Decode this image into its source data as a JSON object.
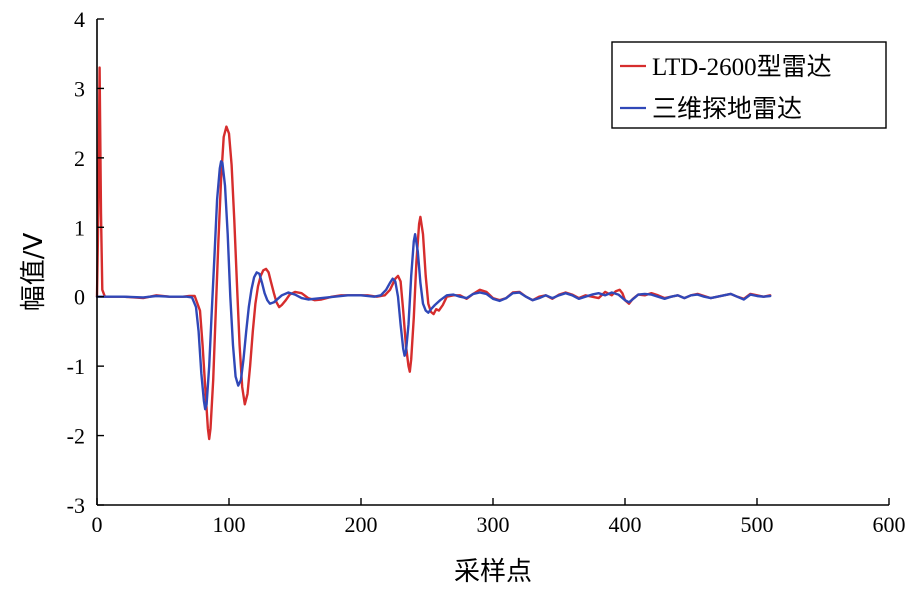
{
  "chart_data": {
    "type": "line",
    "title": "",
    "xlabel": "采样点",
    "ylabel": "幅值/V",
    "xlim": [
      0,
      600
    ],
    "ylim": [
      -3,
      4
    ],
    "xticks": [
      0,
      100,
      200,
      300,
      400,
      500,
      600
    ],
    "yticks": [
      -3,
      -2,
      -1,
      0,
      1,
      2,
      3,
      4
    ],
    "grid": false,
    "legend_position": "top-right",
    "series": [
      {
        "name": "LTD-2600型雷达",
        "color": "#d62d2d",
        "points": [
          [
            0,
            0
          ],
          [
            1,
            1.2
          ],
          [
            2,
            3.3
          ],
          [
            3,
            1.2
          ],
          [
            4,
            0.1
          ],
          [
            6,
            0
          ],
          [
            20,
            0
          ],
          [
            35,
            -0.02
          ],
          [
            45,
            0.02
          ],
          [
            55,
            0
          ],
          [
            65,
            0
          ],
          [
            70,
            0.01
          ],
          [
            74,
            0.01
          ],
          [
            78,
            -0.2
          ],
          [
            80,
            -0.7
          ],
          [
            82,
            -1.3
          ],
          [
            84,
            -1.9
          ],
          [
            85,
            -2.05
          ],
          [
            86,
            -1.9
          ],
          [
            88,
            -1.2
          ],
          [
            90,
            -0.2
          ],
          [
            92,
            0.8
          ],
          [
            94,
            1.7
          ],
          [
            96,
            2.3
          ],
          [
            98,
            2.45
          ],
          [
            100,
            2.35
          ],
          [
            102,
            1.9
          ],
          [
            104,
            1.1
          ],
          [
            106,
            0.2
          ],
          [
            108,
            -0.7
          ],
          [
            110,
            -1.3
          ],
          [
            112,
            -1.55
          ],
          [
            114,
            -1.4
          ],
          [
            116,
            -1.0
          ],
          [
            118,
            -0.5
          ],
          [
            120,
            -0.1
          ],
          [
            122,
            0.15
          ],
          [
            124,
            0.3
          ],
          [
            126,
            0.38
          ],
          [
            128,
            0.4
          ],
          [
            130,
            0.35
          ],
          [
            132,
            0.2
          ],
          [
            134,
            0.05
          ],
          [
            136,
            -0.08
          ],
          [
            138,
            -0.15
          ],
          [
            140,
            -0.12
          ],
          [
            143,
            -0.05
          ],
          [
            146,
            0.03
          ],
          [
            150,
            0.07
          ],
          [
            155,
            0.05
          ],
          [
            160,
            -0.02
          ],
          [
            165,
            -0.05
          ],
          [
            170,
            -0.04
          ],
          [
            178,
            0
          ],
          [
            185,
            0.02
          ],
          [
            195,
            0.02
          ],
          [
            205,
            0.02
          ],
          [
            212,
            0
          ],
          [
            218,
            0.02
          ],
          [
            222,
            0.1
          ],
          [
            226,
            0.26
          ],
          [
            228,
            0.3
          ],
          [
            230,
            0.22
          ],
          [
            232,
            -0.2
          ],
          [
            234,
            -0.7
          ],
          [
            236,
            -1.0
          ],
          [
            237,
            -1.08
          ],
          [
            238,
            -0.9
          ],
          [
            240,
            -0.3
          ],
          [
            242,
            0.5
          ],
          [
            244,
            1.05
          ],
          [
            245,
            1.15
          ],
          [
            247,
            0.9
          ],
          [
            249,
            0.3
          ],
          [
            251,
            -0.1
          ],
          [
            253,
            -0.22
          ],
          [
            255,
            -0.25
          ],
          [
            257,
            -0.18
          ],
          [
            259,
            -0.2
          ],
          [
            262,
            -0.12
          ],
          [
            265,
            0
          ],
          [
            270,
            0.02
          ],
          [
            275,
            0.02
          ],
          [
            280,
            -0.03
          ],
          [
            285,
            0.04
          ],
          [
            290,
            0.1
          ],
          [
            295,
            0.07
          ],
          [
            300,
            -0.02
          ],
          [
            305,
            -0.05
          ],
          [
            310,
            -0.02
          ],
          [
            315,
            0.06
          ],
          [
            320,
            0.07
          ],
          [
            325,
            0
          ],
          [
            330,
            -0.05
          ],
          [
            335,
            0
          ],
          [
            340,
            0.02
          ],
          [
            345,
            -0.03
          ],
          [
            350,
            0.03
          ],
          [
            355,
            0.06
          ],
          [
            360,
            0.03
          ],
          [
            365,
            -0.02
          ],
          [
            370,
            0.02
          ],
          [
            375,
            0
          ],
          [
            380,
            -0.02
          ],
          [
            385,
            0.07
          ],
          [
            390,
            0.02
          ],
          [
            393,
            0.08
          ],
          [
            396,
            0.1
          ],
          [
            398,
            0.05
          ],
          [
            400,
            -0.05
          ],
          [
            403,
            -0.1
          ],
          [
            406,
            -0.03
          ],
          [
            410,
            0.03
          ],
          [
            415,
            0.02
          ],
          [
            420,
            0.05
          ],
          [
            425,
            0.02
          ],
          [
            430,
            -0.02
          ],
          [
            435,
            0
          ],
          [
            440,
            0.02
          ],
          [
            445,
            -0.02
          ],
          [
            450,
            0.02
          ],
          [
            455,
            0.04
          ],
          [
            460,
            0.01
          ],
          [
            465,
            -0.02
          ],
          [
            470,
            0
          ],
          [
            475,
            0.02
          ],
          [
            480,
            0.04
          ],
          [
            485,
            0
          ],
          [
            490,
            -0.03
          ],
          [
            495,
            0.04
          ],
          [
            500,
            0.02
          ],
          [
            505,
            0
          ],
          [
            510,
            0.02
          ]
        ]
      },
      {
        "name": "三维探地雷达",
        "color": "#3048b8",
        "points": [
          [
            0,
            0
          ],
          [
            5,
            0
          ],
          [
            20,
            0
          ],
          [
            35,
            -0.01
          ],
          [
            45,
            0.01
          ],
          [
            55,
            0
          ],
          [
            68,
            0
          ],
          [
            72,
            -0.01
          ],
          [
            75,
            -0.15
          ],
          [
            77,
            -0.5
          ],
          [
            79,
            -1.1
          ],
          [
            81,
            -1.5
          ],
          [
            82,
            -1.62
          ],
          [
            83,
            -1.55
          ],
          [
            85,
            -1.0
          ],
          [
            87,
            -0.2
          ],
          [
            89,
            0.6
          ],
          [
            91,
            1.4
          ],
          [
            93,
            1.85
          ],
          [
            94,
            1.95
          ],
          [
            95,
            1.93
          ],
          [
            97,
            1.6
          ],
          [
            99,
            0.9
          ],
          [
            101,
            0.0
          ],
          [
            103,
            -0.7
          ],
          [
            105,
            -1.15
          ],
          [
            107,
            -1.28
          ],
          [
            109,
            -1.2
          ],
          [
            111,
            -0.9
          ],
          [
            113,
            -0.5
          ],
          [
            115,
            -0.15
          ],
          [
            117,
            0.1
          ],
          [
            119,
            0.28
          ],
          [
            121,
            0.35
          ],
          [
            123,
            0.33
          ],
          [
            125,
            0.2
          ],
          [
            127,
            0.05
          ],
          [
            129,
            -0.05
          ],
          [
            131,
            -0.1
          ],
          [
            134,
            -0.08
          ],
          [
            137,
            -0.03
          ],
          [
            140,
            0.02
          ],
          [
            145,
            0.06
          ],
          [
            150,
            0.03
          ],
          [
            155,
            -0.02
          ],
          [
            160,
            -0.04
          ],
          [
            170,
            -0.02
          ],
          [
            180,
            0
          ],
          [
            190,
            0.02
          ],
          [
            200,
            0.02
          ],
          [
            210,
            0
          ],
          [
            215,
            0.02
          ],
          [
            219,
            0.1
          ],
          [
            222,
            0.2
          ],
          [
            224,
            0.26
          ],
          [
            226,
            0.22
          ],
          [
            228,
            0
          ],
          [
            230,
            -0.4
          ],
          [
            232,
            -0.75
          ],
          [
            233,
            -0.85
          ],
          [
            234,
            -0.8
          ],
          [
            236,
            -0.4
          ],
          [
            238,
            0.3
          ],
          [
            240,
            0.8
          ],
          [
            241,
            0.9
          ],
          [
            243,
            0.65
          ],
          [
            245,
            0.2
          ],
          [
            247,
            -0.1
          ],
          [
            249,
            -0.2
          ],
          [
            251,
            -0.23
          ],
          [
            253,
            -0.18
          ],
          [
            256,
            -0.12
          ],
          [
            260,
            -0.05
          ],
          [
            265,
            0.02
          ],
          [
            270,
            0.03
          ],
          [
            275,
            0
          ],
          [
            280,
            -0.02
          ],
          [
            285,
            0.04
          ],
          [
            290,
            0.06
          ],
          [
            295,
            0.04
          ],
          [
            300,
            -0.03
          ],
          [
            305,
            -0.06
          ],
          [
            310,
            -0.02
          ],
          [
            315,
            0.05
          ],
          [
            320,
            0.06
          ],
          [
            325,
            0
          ],
          [
            330,
            -0.05
          ],
          [
            335,
            -0.02
          ],
          [
            340,
            0.02
          ],
          [
            345,
            -0.02
          ],
          [
            350,
            0.02
          ],
          [
            355,
            0.05
          ],
          [
            360,
            0.02
          ],
          [
            365,
            -0.03
          ],
          [
            370,
            0
          ],
          [
            375,
            0.03
          ],
          [
            380,
            0.05
          ],
          [
            385,
            0.02
          ],
          [
            390,
            0.06
          ],
          [
            395,
            0.03
          ],
          [
            400,
            -0.05
          ],
          [
            403,
            -0.08
          ],
          [
            407,
            -0.02
          ],
          [
            410,
            0.03
          ],
          [
            415,
            0.04
          ],
          [
            420,
            0.03
          ],
          [
            425,
            0
          ],
          [
            430,
            -0.03
          ],
          [
            435,
            0
          ],
          [
            440,
            0.02
          ],
          [
            445,
            -0.02
          ],
          [
            450,
            0.02
          ],
          [
            455,
            0.03
          ],
          [
            460,
            0
          ],
          [
            465,
            -0.02
          ],
          [
            470,
            0
          ],
          [
            475,
            0.02
          ],
          [
            480,
            0.04
          ],
          [
            485,
            0
          ],
          [
            490,
            -0.04
          ],
          [
            495,
            0.03
          ],
          [
            500,
            0.01
          ],
          [
            505,
            0
          ],
          [
            510,
            0.01
          ]
        ]
      }
    ]
  }
}
